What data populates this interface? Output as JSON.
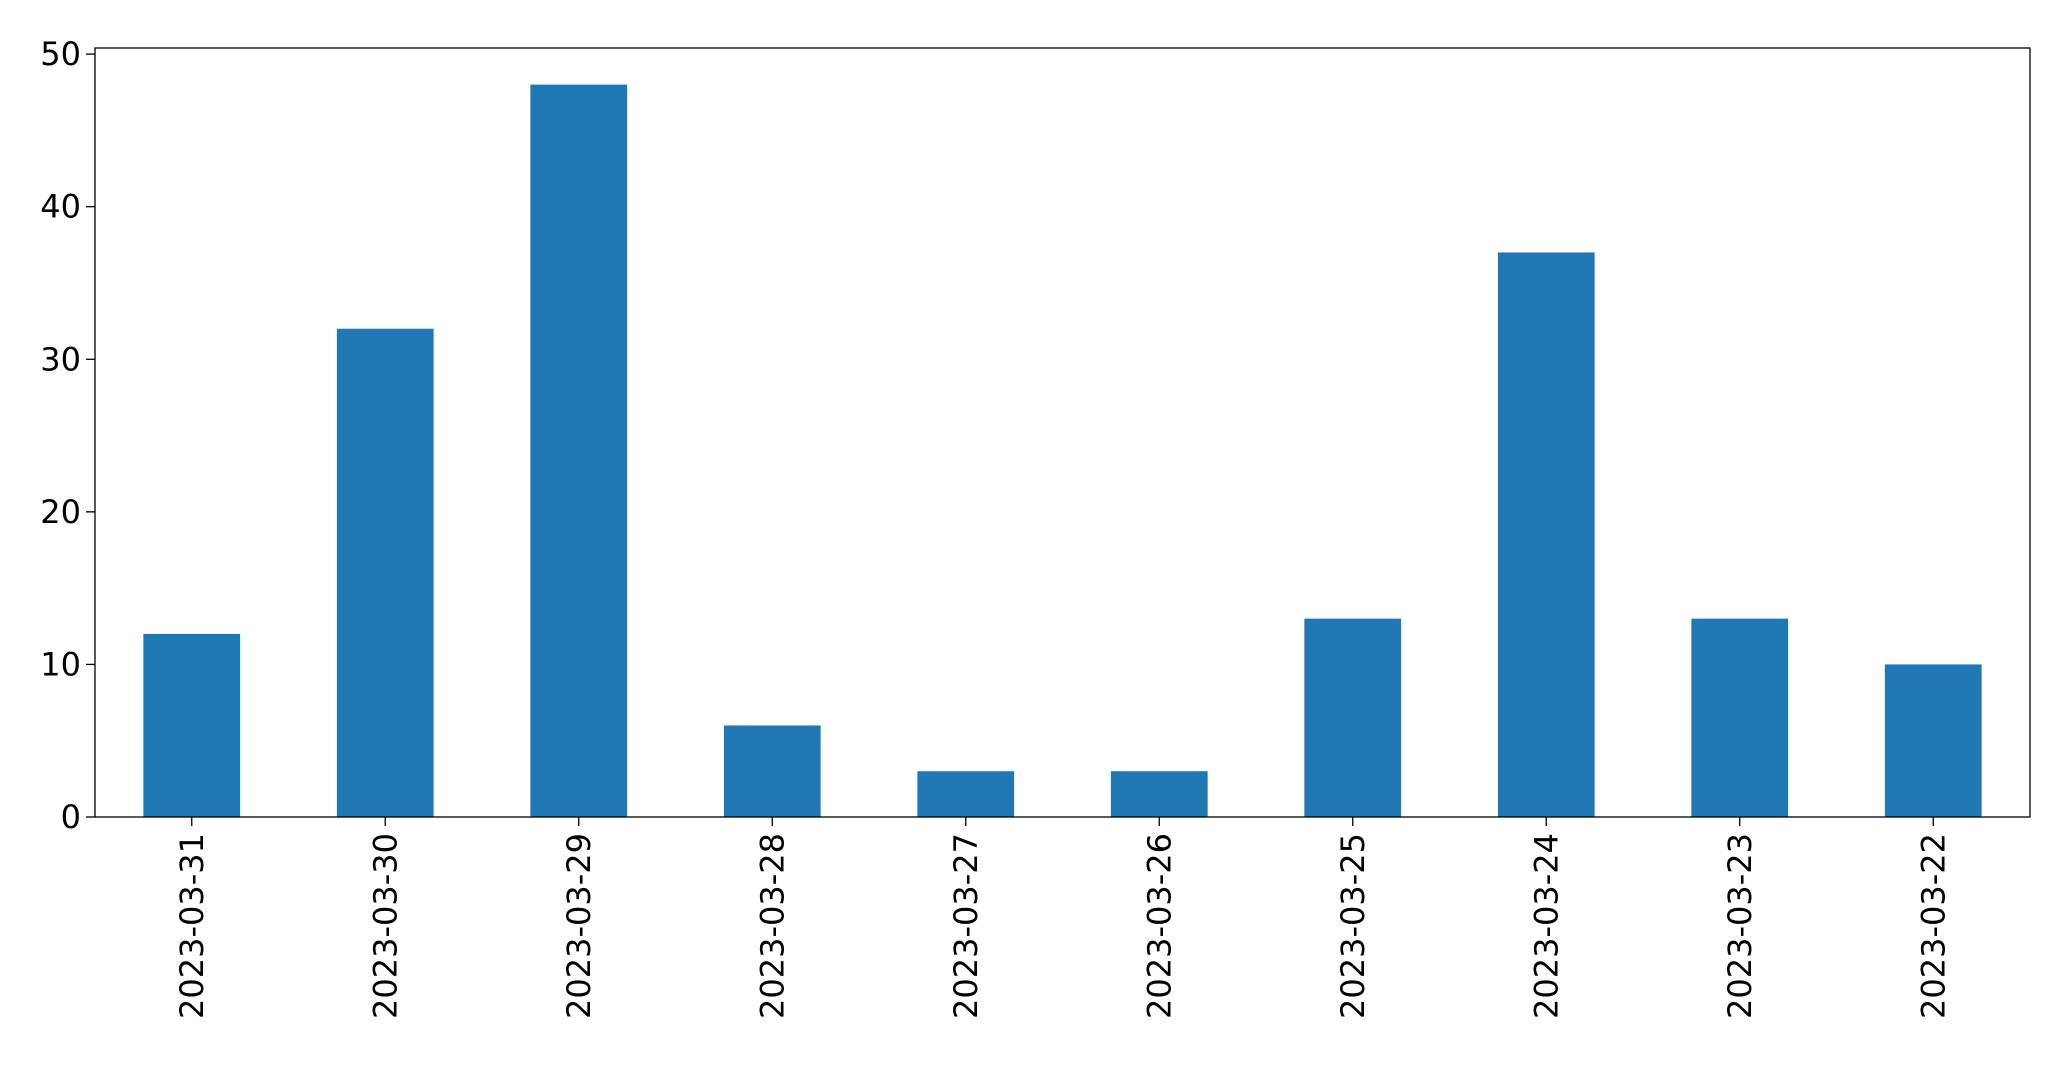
{
  "chart_data": {
    "type": "bar",
    "categories": [
      "2023-03-31",
      "2023-03-30",
      "2023-03-29",
      "2023-03-28",
      "2023-03-27",
      "2023-03-26",
      "2023-03-25",
      "2023-03-24",
      "2023-03-23",
      "2023-03-22"
    ],
    "values": [
      12,
      32,
      48,
      6,
      3,
      3,
      13,
      37,
      13,
      10
    ],
    "color": "#1f77b4",
    "ylim": [
      0,
      50.4
    ],
    "yticks": [
      0,
      10,
      20,
      30,
      40,
      50
    ],
    "grid": false
  }
}
